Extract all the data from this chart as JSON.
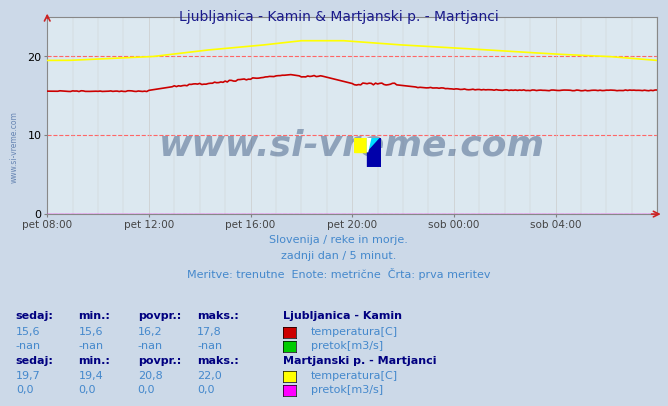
{
  "title": "Ljubljanica - Kamin & Martjanski p. - Martjanci",
  "title_color": "#1a1a8c",
  "bg_color": "#ccd9e8",
  "plot_bg_color": "#dce8f0",
  "grid_color_h": "#ff6666",
  "grid_color_v": "#cccccc",
  "xlim": [
    0,
    288
  ],
  "ylim": [
    0,
    25
  ],
  "yticks": [
    0,
    10,
    20
  ],
  "xtick_labels": [
    "pet 08:00",
    "pet 12:00",
    "pet 16:00",
    "pet 20:00",
    "sob 00:00",
    "sob 04:00"
  ],
  "xtick_positions": [
    0,
    48,
    96,
    144,
    192,
    240
  ],
  "watermark": "www.si-vreme.com",
  "watermark_color": "#1a3a6a",
  "subtitle1": "Slovenija / reke in morje.",
  "subtitle2": "zadnji dan / 5 minut.",
  "subtitle3": "Meritve: trenutne  Enote: metrične  Črta: prva meritev",
  "subtitle_color": "#4488cc",
  "legend_header_color": "#000080",
  "legend_label_color": "#4488cc",
  "station1_name": "Ljubljanica - Kamin",
  "station1_temp_color": "#cc0000",
  "station1_flow_color": "#00cc00",
  "station1_sedaj": "15,6",
  "station1_min": "15,6",
  "station1_povpr": "16,2",
  "station1_maks": "17,8",
  "station1_sedaj2": "-nan",
  "station1_min2": "-nan",
  "station1_povpr2": "-nan",
  "station1_maks2": "-nan",
  "station2_name": "Martjanski p. - Martjanci",
  "station2_temp_color": "#ffff00",
  "station2_flow_color": "#ff00ff",
  "station2_sedaj": "19,7",
  "station2_min": "19,4",
  "station2_povpr": "20,8",
  "station2_maks": "22,0",
  "station2_sedaj2": "0,0",
  "station2_min2": "0,0",
  "station2_povpr2": "0,0",
  "station2_maks2": "0,0"
}
